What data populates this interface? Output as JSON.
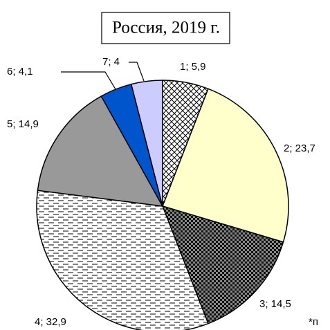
{
  "chart_data": {
    "type": "pie",
    "title": "Россия, 2019 г.",
    "categories": [
      "1",
      "2",
      "3",
      "4",
      "5",
      "6",
      "7"
    ],
    "values": [
      5.9,
      23.7,
      14.5,
      32.9,
      14.9,
      4.1,
      4
    ],
    "value_labels": [
      "1; 5,9",
      "2; 23,7",
      "3; 14,5",
      "4; 32,9",
      "5; 14,9",
      "6; 4,1",
      "7; 4"
    ],
    "colors": [
      "#ffffff",
      "#ffffcc",
      "#888888",
      "#ffffff",
      "#999999",
      "#0055cc",
      "#ccccff"
    ],
    "annotation": "*п"
  }
}
